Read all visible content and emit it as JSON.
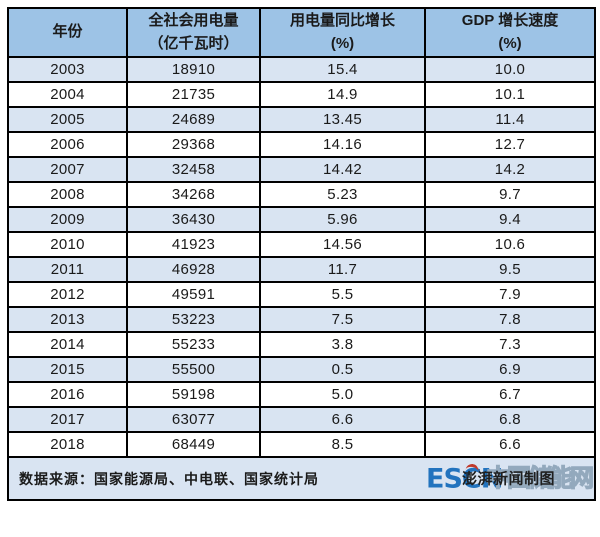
{
  "chart_data": {
    "type": "table",
    "title": "",
    "columns": [
      "年份",
      "全社会用电量（亿千瓦时）",
      "用电量同比增长（%）",
      "GDP 增长速度（%）"
    ],
    "headers": [
      {
        "line1": "年份",
        "line2": ""
      },
      {
        "line1": "全社会用电量",
        "line2": "（亿千瓦时）"
      },
      {
        "line1": "用电量同比增长",
        "line2": "(%)"
      },
      {
        "line1": "GDP 增长速度",
        "line2": "(%)"
      }
    ],
    "rows": [
      [
        "2003",
        "18910",
        "15.4",
        "10.0"
      ],
      [
        "2004",
        "21735",
        "14.9",
        "10.1"
      ],
      [
        "2005",
        "24689",
        "13.45",
        "11.4"
      ],
      [
        "2006",
        "29368",
        "14.16",
        "12.7"
      ],
      [
        "2007",
        "32458",
        "14.42",
        "14.2"
      ],
      [
        "2008",
        "34268",
        "5.23",
        "9.7"
      ],
      [
        "2009",
        "36430",
        "5.96",
        "9.4"
      ],
      [
        "2010",
        "41923",
        "14.56",
        "10.6"
      ],
      [
        "2011",
        "46928",
        "11.7",
        "9.5"
      ],
      [
        "2012",
        "49591",
        "5.5",
        "7.9"
      ],
      [
        "2013",
        "53223",
        "7.5",
        "7.8"
      ],
      [
        "2014",
        "55233",
        "3.8",
        "7.3"
      ],
      [
        "2015",
        "55500",
        "0.5",
        "6.9"
      ],
      [
        "2016",
        "59198",
        "5.0",
        "6.7"
      ],
      [
        "2017",
        "63077",
        "6.6",
        "6.8"
      ],
      [
        "2018",
        "68449",
        "8.5",
        "6.6"
      ]
    ],
    "layout": {
      "banded_rows": true,
      "first_data_row_shaded": true,
      "grid": true
    }
  },
  "footer": {
    "source_label": "数据来源：国家能源局、中电联、国家统计局",
    "watermark_escn": "ESCN",
    "watermark_cn": "中国储能网",
    "credit": "澎湃新闻制图"
  },
  "colors": {
    "header_bg": "#9DC3E6",
    "band_bg": "#D9E4F2",
    "row_bg": "#FFFFFF",
    "footer_bg": "#D9E4F2",
    "border": "#000000",
    "text": "#1A1A1A",
    "escn_blue": "#2273BE",
    "escn_red": "#C0392B",
    "watermark_outline": "#93A9BD"
  }
}
